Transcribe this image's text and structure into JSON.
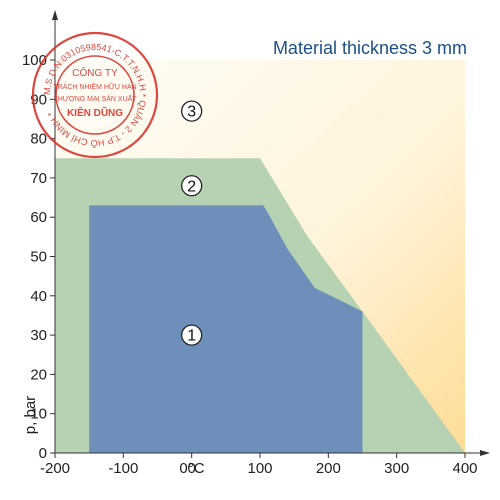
{
  "chart_data": {
    "type": "area",
    "title": "Material thickness 3 mm",
    "xlabel": "0°C",
    "ylabel": "p, bar",
    "xlim": [
      -200,
      400
    ],
    "ylim": [
      0,
      100
    ],
    "x_ticks": [
      -200,
      -100,
      0,
      100,
      200,
      300,
      400
    ],
    "y_ticks": [
      0,
      10,
      20,
      30,
      40,
      50,
      60,
      70,
      80,
      90,
      100
    ],
    "grid": false,
    "zones": [
      {
        "name": "3",
        "label": "3",
        "color": "#fde6ad",
        "label_at": [
          0,
          87
        ],
        "polygon": [
          [
            -200,
            0
          ],
          [
            400,
            0
          ],
          [
            400,
            100
          ],
          [
            -200,
            100
          ]
        ]
      },
      {
        "name": "2",
        "label": "2",
        "color": "#b6d2b2",
        "label_at": [
          0,
          68
        ],
        "polygon": [
          [
            -200,
            0
          ],
          [
            400,
            0
          ],
          [
            250,
            36
          ],
          [
            170,
            55
          ],
          [
            100,
            75
          ],
          [
            -200,
            75
          ]
        ]
      },
      {
        "name": "1",
        "label": "1",
        "color": "#6f8fbb",
        "label_at": [
          0,
          30
        ],
        "polygon": [
          [
            -150,
            0
          ],
          [
            250,
            0
          ],
          [
            250,
            36
          ],
          [
            180,
            42
          ],
          [
            140,
            52
          ],
          [
            115,
            60
          ],
          [
            105,
            63
          ],
          [
            -150,
            63
          ]
        ]
      }
    ]
  },
  "stamp": {
    "ring_text": "M.S.D.N:0310598541-C.T.T.N.H.H * QUẬN 2 - T.P HỒ CHÍ MINH *",
    "line1": "CÔNG TY",
    "line2": "TRÁCH NHIỆM HỮU HẠN",
    "line3": "THƯƠNG MẠI SẢN XUẤT",
    "line4": "KIÊN DŨNG",
    "color": "#d9352b"
  }
}
